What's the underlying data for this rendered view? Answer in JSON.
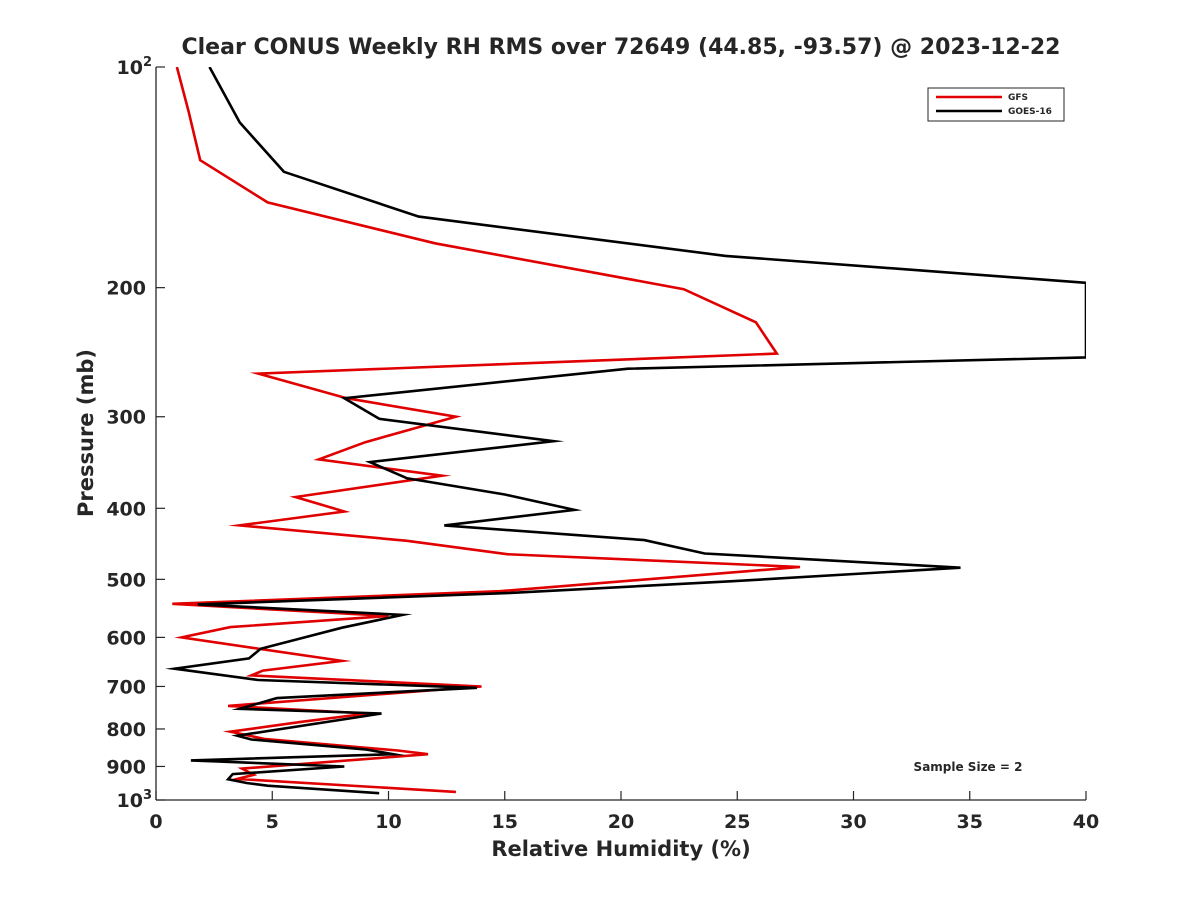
{
  "chart_data": {
    "type": "line",
    "title": "Clear CONUS Weekly RH RMS over 72649 (44.85, -93.57) @ 2023-12-22",
    "xlabel": "Relative Humidity (%)",
    "ylabel": "Pressure (mb)",
    "xlim": [
      0,
      40
    ],
    "ylim": [
      100,
      1000
    ],
    "yscale": "log",
    "y_reversed": true,
    "grid": false,
    "legend_position": "top-right",
    "annotation": "Sample Size = 2",
    "x_ticks": [
      0,
      5,
      10,
      15,
      20,
      25,
      30,
      35,
      40
    ],
    "y_ticks": [
      {
        "value": 100,
        "label": "10",
        "sup": "2"
      },
      {
        "value": 200,
        "label": "200"
      },
      {
        "value": 300,
        "label": "300"
      },
      {
        "value": 400,
        "label": "400"
      },
      {
        "value": 500,
        "label": "500"
      },
      {
        "value": 600,
        "label": "600"
      },
      {
        "value": 700,
        "label": "700"
      },
      {
        "value": 800,
        "label": "800"
      },
      {
        "value": 900,
        "label": "900"
      },
      {
        "value": 1000,
        "label": "10",
        "sup": "3"
      }
    ],
    "series": [
      {
        "name": "GFS",
        "color": "#e00000",
        "points": [
          [
            12.9,
            975
          ],
          [
            3.5,
            936
          ],
          [
            4.2,
            924
          ],
          [
            3.7,
            906
          ],
          [
            11.7,
            866
          ],
          [
            10.4,
            856
          ],
          [
            4.7,
            826
          ],
          [
            3.2,
            807
          ],
          [
            6.3,
            782
          ],
          [
            9.1,
            762
          ],
          [
            3.1,
            744
          ],
          [
            14.0,
            700
          ],
          [
            4.1,
            676
          ],
          [
            4.6,
            666
          ],
          [
            8.0,
            646
          ],
          [
            1.1,
            600
          ],
          [
            3.2,
            581
          ],
          [
            10.0,
            561
          ],
          [
            0.7,
            540
          ],
          [
            14.8,
            519
          ],
          [
            27.7,
            481
          ],
          [
            15.1,
            462
          ],
          [
            10.8,
            443
          ],
          [
            3.6,
            422
          ],
          [
            8.1,
            404
          ],
          [
            6.0,
            386
          ],
          [
            12.3,
            361
          ],
          [
            7.0,
            343
          ],
          [
            9.0,
            325
          ],
          [
            12.9,
            300
          ],
          [
            8.2,
            283
          ],
          [
            4.4,
            262
          ],
          [
            26.7,
            246
          ],
          [
            25.8,
            223
          ],
          [
            22.7,
            201
          ],
          [
            12.0,
            174
          ],
          [
            4.8,
            153
          ],
          [
            1.9,
            134
          ],
          [
            1.4,
            115
          ],
          [
            0.9,
            100
          ]
        ]
      },
      {
        "name": "GOES-16",
        "color": "#000000",
        "points": [
          [
            9.6,
            979
          ],
          [
            4.8,
            956
          ],
          [
            3.9,
            948
          ],
          [
            3.1,
            937
          ],
          [
            3.3,
            922
          ],
          [
            8.1,
            900
          ],
          [
            1.5,
            883
          ],
          [
            10.2,
            866
          ],
          [
            9.0,
            853
          ],
          [
            4.1,
            827
          ],
          [
            3.5,
            817
          ],
          [
            9.7,
            762
          ],
          [
            3.6,
            751
          ],
          [
            5.2,
            726
          ],
          [
            13.8,
            703
          ],
          [
            4.4,
            686
          ],
          [
            0.8,
            662
          ],
          [
            4.0,
            641
          ],
          [
            4.5,
            622
          ],
          [
            8.0,
            582
          ],
          [
            10.6,
            559
          ],
          [
            1.8,
            541
          ],
          [
            15.1,
            522
          ],
          [
            24.8,
            503
          ],
          [
            34.6,
            482
          ],
          [
            23.6,
            461
          ],
          [
            21.0,
            442
          ],
          [
            12.4,
            422
          ],
          [
            18.0,
            402
          ],
          [
            15.0,
            383
          ],
          [
            10.8,
            364
          ],
          [
            9.2,
            346
          ],
          [
            17.1,
            324
          ],
          [
            9.6,
            302
          ],
          [
            8.1,
            283
          ],
          [
            20.3,
            258
          ],
          [
            40.0,
            249
          ],
          [
            40.0,
            197
          ],
          [
            24.5,
            181
          ],
          [
            11.3,
            160
          ],
          [
            5.5,
            139
          ],
          [
            3.6,
            119
          ],
          [
            2.3,
            100
          ]
        ]
      }
    ]
  }
}
